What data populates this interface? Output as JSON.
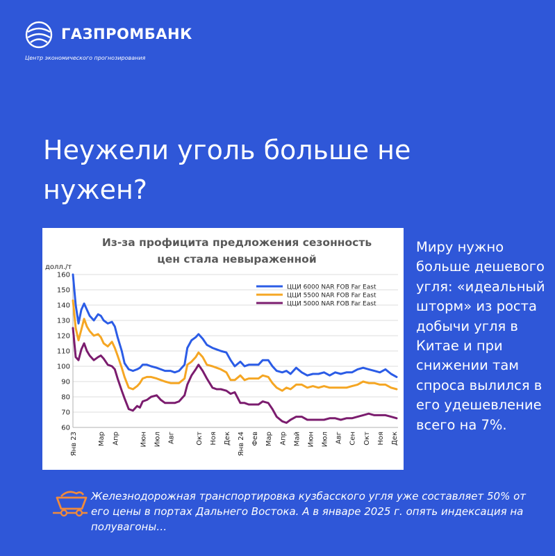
{
  "brand": {
    "name": "ГАЗПРОМБАНК",
    "subtitle": "Центр экономического прогнозирования"
  },
  "headline": "Неужели уголь больше не нужен?",
  "side_text": "Миру нужно больше дешевого угля: «идеальный шторм» из роста добычи угля в Китае и при снижении там спроса вылился в его удешевление всего на 7%.",
  "note_text": "Железнодорожная транспортировка кузбасского угля уже составляет 50% от его цены в портах Дальнего Востока.  А в январе 2025  г. опять индексация на полувагоны…",
  "icons": {
    "logo": "gazprombank-globe-logo",
    "note": "coal-wagon-icon"
  },
  "colors": {
    "background": "#2f57d8",
    "accent": "#f08a3c"
  },
  "chart_data": {
    "type": "line",
    "title_line1": "Из-за профицита предложения сезонность",
    "title_line2": "цен стала невыраженной",
    "ylabel": "долл./т",
    "ylim": [
      60,
      160
    ],
    "yticks": [
      60,
      70,
      80,
      90,
      100,
      110,
      120,
      130,
      140,
      150,
      160
    ],
    "grid": true,
    "legend_position": "top-right",
    "x_tick_labels": [
      "Янв 23",
      "Мар",
      "Апр",
      "Июн",
      "Июл",
      "Авг",
      "Окт",
      "Ноя",
      "Дек",
      "Янв 24",
      "Фев",
      "Мар",
      "Апр",
      "Май",
      "Июн",
      "Июл",
      "Авг",
      "Сен",
      "Окт",
      "Ноя",
      "Дек"
    ],
    "x_tick_positions": [
      0,
      2,
      3,
      5,
      6,
      7,
      9,
      10,
      11,
      12,
      13,
      14,
      15,
      16,
      17,
      18,
      19,
      20,
      21,
      22,
      23
    ],
    "x_range": [
      0,
      23.3
    ],
    "series": [
      {
        "name": "ЦЦИ 6000 NAR FOB Far East",
        "color": "#2b5ce6",
        "x": [
          0,
          0.2,
          0.4,
          0.6,
          0.8,
          1.0,
          1.2,
          1.5,
          1.8,
          2.0,
          2.2,
          2.5,
          2.8,
          3.0,
          3.2,
          3.5,
          3.7,
          4.0,
          4.3,
          4.6,
          4.8,
          5.0,
          5.3,
          5.6,
          6.0,
          6.3,
          6.6,
          7.0,
          7.3,
          7.6,
          8.0,
          8.2,
          8.5,
          8.8,
          9.0,
          9.3,
          9.6,
          10.0,
          10.3,
          10.6,
          11.0,
          11.3,
          11.6,
          12.0,
          12.3,
          12.6,
          13.0,
          13.3,
          13.6,
          14.0,
          14.3,
          14.6,
          15.0,
          15.3,
          15.6,
          16.0,
          16.4,
          16.8,
          17.2,
          17.6,
          18.0,
          18.4,
          18.8,
          19.2,
          19.6,
          20.0,
          20.4,
          20.8,
          21.2,
          21.6,
          22.0,
          22.4,
          22.8,
          23.2
        ],
        "y": [
          160,
          140,
          128,
          137,
          141,
          137,
          133,
          130,
          134,
          133,
          130,
          128,
          129,
          126,
          119,
          110,
          102,
          98,
          97,
          98,
          99,
          101,
          101,
          100,
          99,
          98,
          97,
          97,
          96,
          97,
          101,
          112,
          117,
          119,
          121,
          118,
          114,
          112,
          111,
          110,
          109,
          104,
          100,
          103,
          100,
          101,
          101,
          101,
          104,
          104,
          100,
          97,
          96,
          97,
          95,
          99,
          96,
          94,
          95,
          95,
          96,
          94,
          96,
          95,
          96,
          96,
          98,
          99,
          98,
          97,
          96,
          98,
          95,
          93
        ]
      },
      {
        "name": "ЦЦИ 5500 NAR FOB Far East",
        "color": "#f5a623",
        "x": [
          0,
          0.2,
          0.4,
          0.6,
          0.8,
          1.0,
          1.2,
          1.5,
          1.8,
          2.0,
          2.2,
          2.5,
          2.8,
          3.0,
          3.2,
          3.5,
          3.7,
          4.0,
          4.3,
          4.6,
          4.8,
          5.0,
          5.3,
          5.6,
          6.0,
          6.3,
          6.6,
          7.0,
          7.3,
          7.6,
          8.0,
          8.2,
          8.5,
          8.8,
          9.0,
          9.3,
          9.6,
          10.0,
          10.3,
          10.6,
          11.0,
          11.3,
          11.6,
          12.0,
          12.3,
          12.6,
          13.0,
          13.3,
          13.6,
          14.0,
          14.3,
          14.6,
          15.0,
          15.3,
          15.6,
          16.0,
          16.4,
          16.8,
          17.2,
          17.6,
          18.0,
          18.4,
          18.8,
          19.2,
          19.6,
          20.0,
          20.4,
          20.8,
          21.2,
          21.6,
          22.0,
          22.4,
          22.8,
          23.2
        ],
        "y": [
          143,
          125,
          117,
          124,
          131,
          126,
          123,
          120,
          121,
          119,
          115,
          113,
          116,
          112,
          107,
          99,
          93,
          86,
          85,
          87,
          89,
          92,
          93,
          93,
          92,
          91,
          90,
          89,
          89,
          89,
          92,
          101,
          103,
          106,
          109,
          106,
          101,
          100,
          99,
          98,
          96,
          91,
          91,
          94,
          91,
          92,
          92,
          92,
          94,
          93,
          89,
          86,
          84,
          86,
          85,
          88,
          88,
          86,
          87,
          86,
          87,
          86,
          86,
          86,
          86,
          87,
          88,
          90,
          89,
          89,
          88,
          88,
          86,
          85
        ]
      },
      {
        "name": "ЦЦИ 5000 NAR FOB Far East",
        "color": "#7b1c6e",
        "x": [
          0,
          0.2,
          0.4,
          0.6,
          0.8,
          1.0,
          1.2,
          1.5,
          1.8,
          2.0,
          2.2,
          2.5,
          2.8,
          3.0,
          3.2,
          3.5,
          3.7,
          4.0,
          4.3,
          4.6,
          4.8,
          5.0,
          5.3,
          5.6,
          6.0,
          6.3,
          6.6,
          7.0,
          7.3,
          7.6,
          8.0,
          8.2,
          8.5,
          8.8,
          9.0,
          9.3,
          9.6,
          10.0,
          10.3,
          10.6,
          11.0,
          11.3,
          11.6,
          12.0,
          12.3,
          12.6,
          13.0,
          13.3,
          13.6,
          14.0,
          14.3,
          14.6,
          15.0,
          15.3,
          15.6,
          16.0,
          16.4,
          16.8,
          17.2,
          17.6,
          18.0,
          18.4,
          18.8,
          19.2,
          19.6,
          20.0,
          20.4,
          20.8,
          21.2,
          21.6,
          22.0,
          22.4,
          22.8,
          23.2
        ],
        "y": [
          125,
          106,
          104,
          111,
          115,
          110,
          107,
          104,
          106,
          107,
          105,
          101,
          100,
          98,
          92,
          84,
          79,
          72,
          71,
          74,
          73,
          77,
          78,
          80,
          81,
          78,
          76,
          76,
          76,
          77,
          81,
          88,
          94,
          98,
          101,
          97,
          92,
          86,
          85,
          85,
          84,
          82,
          83,
          76,
          76,
          75,
          75,
          75,
          77,
          76,
          72,
          67,
          64,
          63,
          65,
          67,
          67,
          65,
          65,
          65,
          65,
          66,
          66,
          65,
          66,
          66,
          67,
          68,
          69,
          68,
          68,
          68,
          67,
          66
        ]
      }
    ]
  }
}
